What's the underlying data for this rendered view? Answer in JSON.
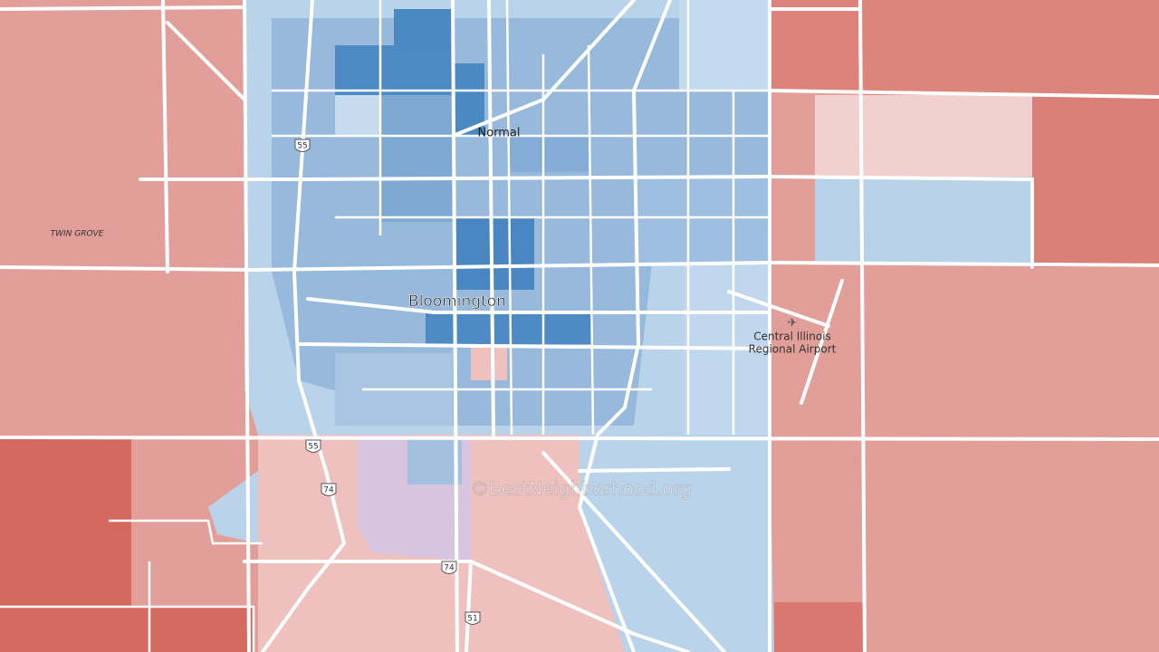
{
  "places": {
    "normal": "Normal",
    "bloomington": "Bloomington",
    "twin_grove": "TWIN GROVE",
    "airport": [
      "Central Illinois",
      "Regional Airport"
    ]
  },
  "shields": [
    "55",
    "55",
    "74",
    "74",
    "51"
  ],
  "watermark": "©BestNeighborhood.org"
}
